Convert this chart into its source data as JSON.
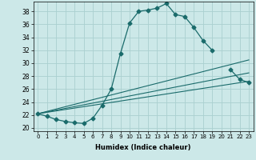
{
  "xlabel": "Humidex (Indice chaleur)",
  "xlim": [
    -0.5,
    23.5
  ],
  "ylim": [
    19.5,
    39.5
  ],
  "xticks": [
    0,
    1,
    2,
    3,
    4,
    5,
    6,
    7,
    8,
    9,
    10,
    11,
    12,
    13,
    14,
    15,
    16,
    17,
    18,
    19,
    20,
    21,
    22,
    23
  ],
  "yticks": [
    20,
    22,
    24,
    26,
    28,
    30,
    32,
    34,
    36,
    38
  ],
  "background_color": "#cce8e8",
  "grid_color": "#aad0d0",
  "line_color": "#1a6b6b",
  "lines": [
    {
      "x": [
        0,
        1,
        2,
        3,
        4,
        5,
        6,
        7,
        8,
        9,
        10,
        11,
        12,
        13,
        14,
        15,
        16,
        17,
        18,
        19,
        20,
        21,
        22,
        23
      ],
      "y": [
        22.2,
        21.8,
        21.3,
        21.0,
        20.8,
        20.7,
        21.5,
        23.5,
        26.0,
        31.5,
        36.2,
        38.0,
        38.2,
        38.5,
        39.2,
        37.5,
        37.2,
        35.5,
        33.5,
        32.0,
        null,
        29.0,
        27.5,
        27.0
      ],
      "marker": "D",
      "markersize": 2.5
    },
    {
      "x": [
        0,
        23
      ],
      "y": [
        22.2,
        30.5
      ],
      "marker": null
    },
    {
      "x": [
        0,
        23
      ],
      "y": [
        22.2,
        28.5
      ],
      "marker": null
    },
    {
      "x": [
        0,
        23
      ],
      "y": [
        22.2,
        27.2
      ],
      "marker": null
    }
  ]
}
